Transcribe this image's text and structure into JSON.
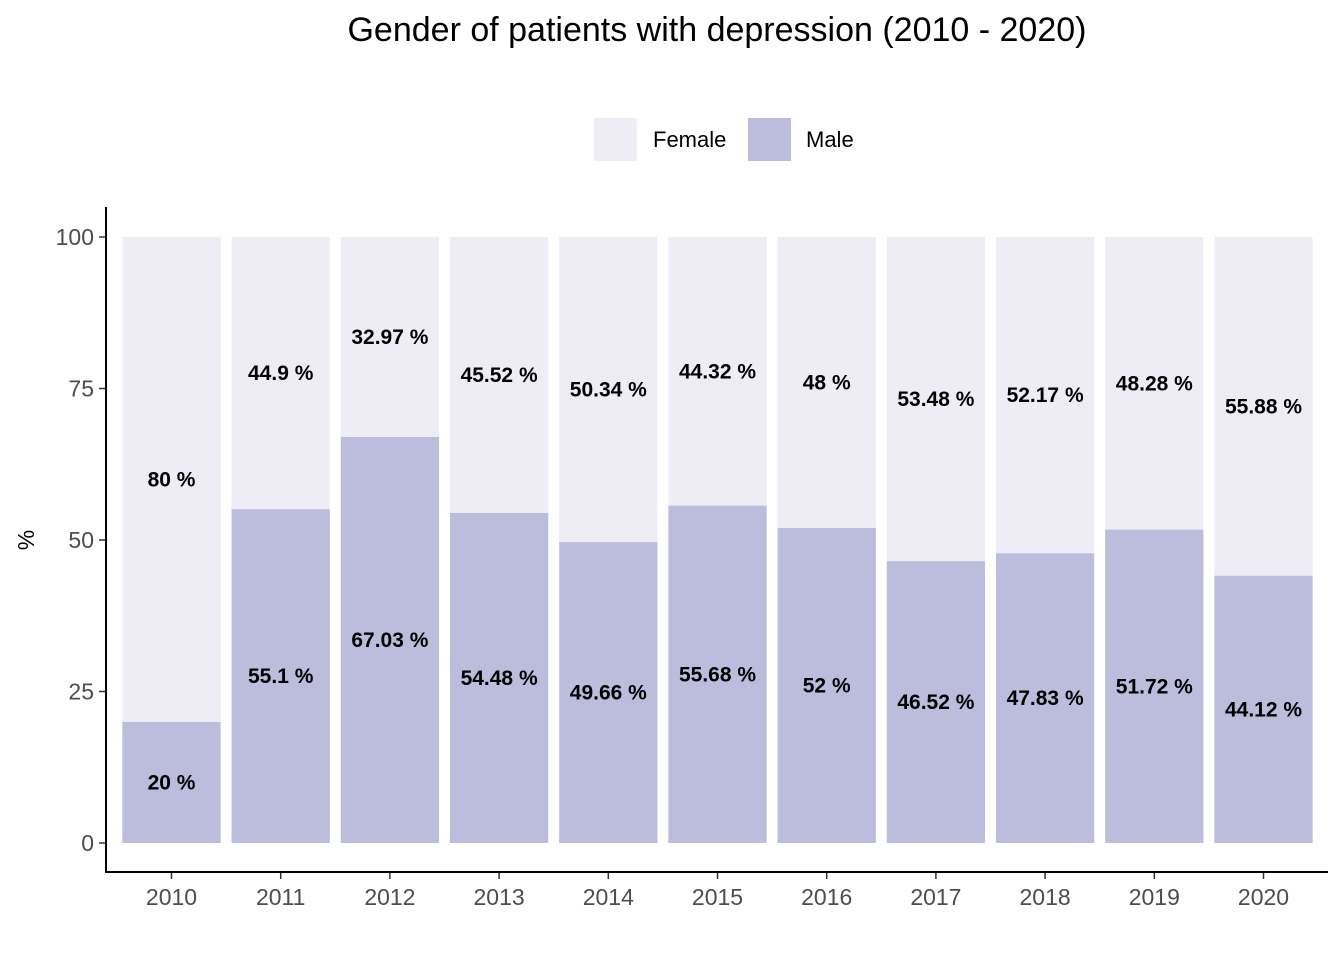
{
  "chart_data": {
    "type": "bar",
    "stacked": true,
    "title": "Gender of patients with depression (2010 - 2020)",
    "xlabel": "",
    "ylabel": "%",
    "ylim": [
      0,
      100
    ],
    "yticks": [
      0,
      25,
      50,
      75,
      100
    ],
    "grid": false,
    "legend_position": "top",
    "categories": [
      "2010",
      "2011",
      "2012",
      "2013",
      "2014",
      "2015",
      "2016",
      "2017",
      "2018",
      "2019",
      "2020"
    ],
    "series": [
      {
        "name": "Female",
        "color": "#eeedf6",
        "values": [
          80,
          44.9,
          32.97,
          45.52,
          50.34,
          44.32,
          48,
          53.48,
          52.17,
          48.28,
          55.88
        ],
        "labels": [
          "80 %",
          "44.9 %",
          "32.97 %",
          "45.52 %",
          "50.34 %",
          "44.32 %",
          "48 %",
          "53.48 %",
          "52.17 %",
          "48.28 %",
          "55.88 %"
        ]
      },
      {
        "name": "Male",
        "color": "#bcbcdc",
        "values": [
          20,
          55.1,
          67.03,
          54.48,
          49.66,
          55.68,
          52,
          46.52,
          47.83,
          51.72,
          44.12
        ],
        "labels": [
          "20 %",
          "55.1 %",
          "67.03 %",
          "54.48 %",
          "49.66 %",
          "55.68 %",
          "52 %",
          "46.52 %",
          "47.83 %",
          "51.72 %",
          "44.12 %"
        ]
      }
    ]
  }
}
